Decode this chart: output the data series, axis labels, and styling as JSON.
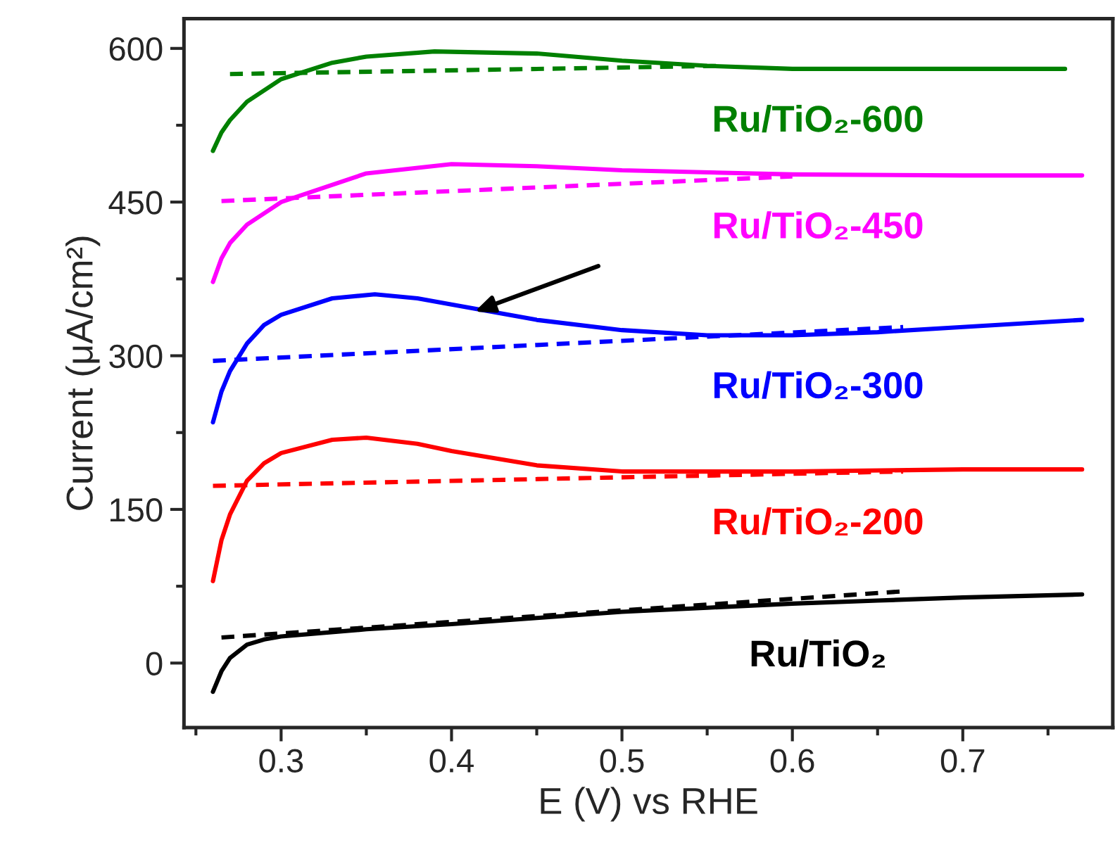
{
  "chart_data": {
    "type": "line",
    "xlabel": "E (V) vs RHE",
    "ylabel": "Current (μA/cm²)",
    "xlim": [
      0.243,
      0.788
    ],
    "ylim": [
      -63,
      629
    ],
    "xticks": [
      0.3,
      0.4,
      0.5,
      0.6,
      0.7
    ],
    "yticks": [
      0,
      150,
      300,
      450,
      600
    ],
    "grid": false,
    "legend": false,
    "marker": "none",
    "series": [
      {
        "name": "Ru/TiO₂",
        "color": "#000000",
        "line_style": "solid",
        "x": [
          0.26,
          0.265,
          0.27,
          0.28,
          0.29,
          0.3,
          0.35,
          0.4,
          0.45,
          0.5,
          0.55,
          0.6,
          0.65,
          0.7,
          0.77
        ],
        "values": [
          -28,
          -8,
          5,
          18,
          23,
          26,
          33,
          38,
          44,
          50,
          54,
          58,
          61,
          64,
          67
        ]
      },
      {
        "color": "#000000",
        "line_style": "dashed",
        "x": [
          0.265,
          0.665
        ],
        "values": [
          25,
          70
        ]
      },
      {
        "name": "Ru/TiO₂-200",
        "color": "#ff0000",
        "line_style": "solid",
        "x": [
          0.26,
          0.265,
          0.27,
          0.28,
          0.29,
          0.3,
          0.33,
          0.35,
          0.38,
          0.4,
          0.45,
          0.5,
          0.6,
          0.7,
          0.77
        ],
        "values": [
          80,
          120,
          145,
          178,
          195,
          205,
          218,
          220,
          214,
          207,
          193,
          187,
          187,
          189,
          189
        ]
      },
      {
        "color": "#ff0000",
        "line_style": "dashed",
        "x": [
          0.26,
          0.665
        ],
        "values": [
          173,
          187
        ]
      },
      {
        "name": "Ru/TiO₂-300",
        "color": "#0000ff",
        "line_style": "solid",
        "x": [
          0.26,
          0.265,
          0.27,
          0.28,
          0.29,
          0.3,
          0.33,
          0.355,
          0.38,
          0.4,
          0.45,
          0.5,
          0.55,
          0.6,
          0.65,
          0.7,
          0.77
        ],
        "values": [
          235,
          265,
          285,
          312,
          330,
          340,
          356,
          360,
          356,
          350,
          335,
          325,
          320,
          320,
          323,
          328,
          335
        ]
      },
      {
        "color": "#0000ff",
        "line_style": "dashed",
        "x": [
          0.26,
          0.665
        ],
        "values": [
          295,
          328
        ]
      },
      {
        "name": "Ru/TiO₂-450",
        "color": "#ff00ff",
        "line_style": "solid",
        "x": [
          0.26,
          0.265,
          0.27,
          0.28,
          0.3,
          0.35,
          0.4,
          0.45,
          0.5,
          0.6,
          0.7,
          0.77
        ],
        "values": [
          372,
          395,
          410,
          428,
          450,
          478,
          487,
          485,
          481,
          477,
          476,
          476
        ]
      },
      {
        "color": "#ff00ff",
        "line_style": "dashed",
        "x": [
          0.265,
          0.6
        ],
        "values": [
          451,
          475
        ]
      },
      {
        "name": "Ru/TiO₂-600",
        "color": "#008000",
        "line_style": "solid",
        "x": [
          0.26,
          0.265,
          0.27,
          0.28,
          0.3,
          0.33,
          0.35,
          0.39,
          0.45,
          0.5,
          0.55,
          0.6,
          0.7,
          0.76
        ],
        "values": [
          500,
          518,
          530,
          548,
          570,
          586,
          592,
          597,
          595,
          588,
          583,
          580,
          580,
          580
        ]
      },
      {
        "color": "#008000",
        "line_style": "dashed",
        "x": [
          0.27,
          0.56
        ],
        "values": [
          575,
          583
        ]
      }
    ]
  }
}
